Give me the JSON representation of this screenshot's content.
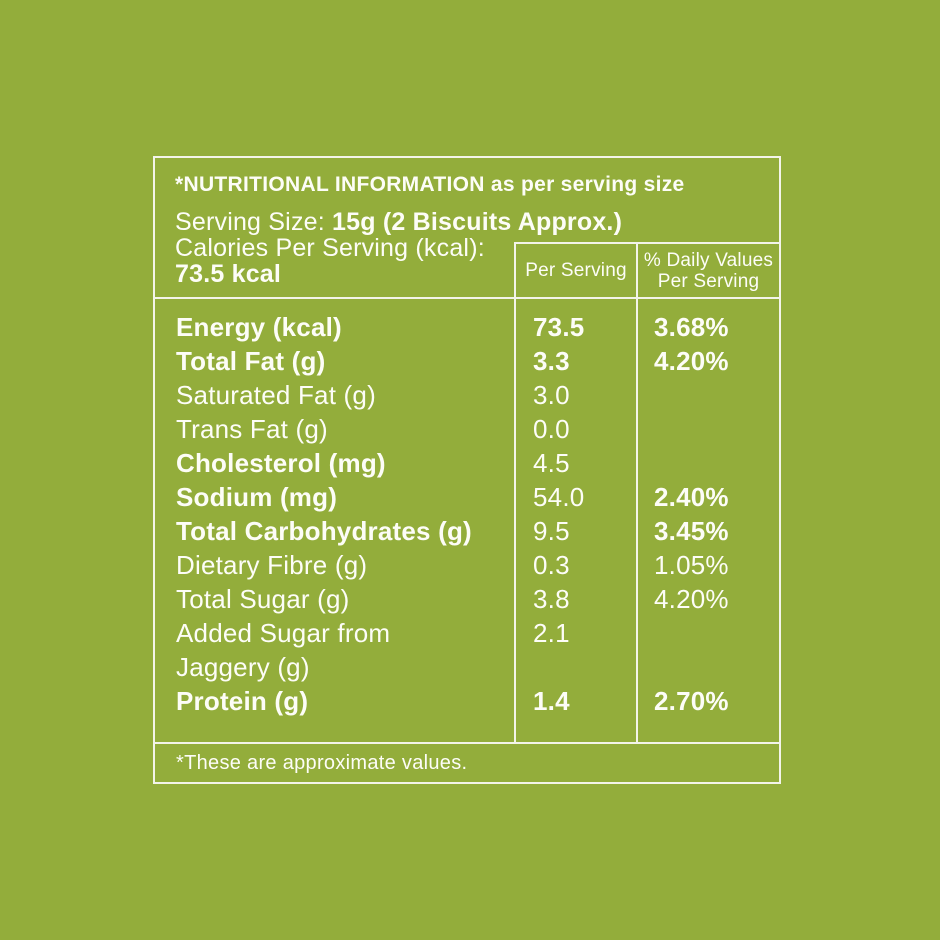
{
  "colors": {
    "background_green": "#93ad3b",
    "text": "#fdfdf7",
    "border": "#f3f4e9"
  },
  "header": {
    "title_bold": "*NUTRITIONAL INFORMATION",
    "title_rest": " as per serving size",
    "serving_label": "Serving Size: ",
    "serving_value": "15g (2 Biscuits Approx.)",
    "calories_label": "Calories Per Serving (kcal):",
    "calories_value": "73.5 kcal"
  },
  "columns": {
    "per_serving": "Per Serving",
    "daily_line1": "% Daily Values",
    "daily_line2": "Per Serving"
  },
  "rows": [
    {
      "name": "Energy (kcal)",
      "per_serving": "73.5",
      "daily_value": "3.68%",
      "name_bold": true,
      "value_bold": true,
      "daily_bold": true
    },
    {
      "name": "Total Fat (g)",
      "per_serving": "3.3",
      "daily_value": "4.20%",
      "name_bold": true,
      "value_bold": true,
      "daily_bold": true
    },
    {
      "name": "Saturated Fat (g)",
      "per_serving": "3.0",
      "daily_value": "",
      "name_bold": false,
      "value_bold": false,
      "daily_bold": false
    },
    {
      "name": "Trans Fat (g)",
      "per_serving": "0.0",
      "daily_value": "",
      "name_bold": false,
      "value_bold": false,
      "daily_bold": false
    },
    {
      "name": "Cholesterol (mg)",
      "per_serving": "4.5",
      "daily_value": "",
      "name_bold": true,
      "value_bold": false,
      "daily_bold": false
    },
    {
      "name": "Sodium (mg)",
      "per_serving": "54.0",
      "daily_value": "2.40%",
      "name_bold": true,
      "value_bold": false,
      "daily_bold": true
    },
    {
      "name": "Total Carbohydrates (g)",
      "per_serving": "9.5",
      "daily_value": "3.45%",
      "name_bold": true,
      "value_bold": false,
      "daily_bold": true
    },
    {
      "name": "Dietary Fibre (g)",
      "per_serving": "0.3",
      "daily_value": "1.05%",
      "name_bold": false,
      "value_bold": false,
      "daily_bold": false
    },
    {
      "name": "Total Sugar (g)",
      "per_serving": "3.8",
      "daily_value": "4.20%",
      "name_bold": false,
      "value_bold": false,
      "daily_bold": false
    },
    {
      "name": "Added Sugar from Jaggery (g)",
      "per_serving": "2.1",
      "daily_value": "",
      "name_bold": false,
      "value_bold": false,
      "daily_bold": false
    },
    {
      "name": "Protein (g)",
      "per_serving": "1.4",
      "daily_value": "2.70%",
      "name_bold": true,
      "value_bold": true,
      "daily_bold": true
    }
  ],
  "footnote": "*These are approximate values."
}
